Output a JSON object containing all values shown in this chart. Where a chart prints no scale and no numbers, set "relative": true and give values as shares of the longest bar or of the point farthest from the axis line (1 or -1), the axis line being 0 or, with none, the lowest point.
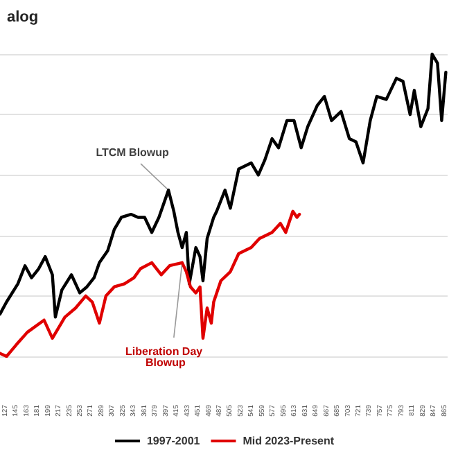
{
  "chart_data": {
    "type": "line",
    "title": "alog",
    "relative": true,
    "grid": "y",
    "legend": "bottom",
    "marker": "none",
    "line_style": "solid",
    "tick_labels": "x",
    "xlim": [
      118,
      870
    ],
    "xticks": [
      127,
      145,
      163,
      181,
      199,
      217,
      235,
      253,
      271,
      289,
      307,
      325,
      343,
      361,
      379,
      397,
      415,
      433,
      451,
      469,
      487,
      505,
      523,
      541,
      559,
      577,
      595,
      613,
      631,
      649,
      667,
      685,
      703,
      721,
      739,
      757,
      775,
      793,
      811,
      829,
      847,
      865
    ],
    "series": [
      {
        "name": "1997-2001",
        "color": "#000000",
        "x": [
          118,
          129,
          148,
          160,
          171,
          183,
          194,
          206,
          211,
          222,
          238,
          252,
          264,
          276,
          285,
          299,
          310,
          322,
          338,
          350,
          361,
          373,
          385,
          401,
          410,
          417,
          424,
          431,
          436,
          447,
          454,
          459,
          466,
          477,
          482,
          496,
          505,
          519,
          540,
          552,
          563,
          575,
          586,
          600,
          612,
          624,
          635,
          651,
          663,
          675,
          691,
          705,
          716,
          728,
          740,
          751,
          767,
          784,
          795,
          807,
          814,
          825,
          837,
          844,
          853,
          860,
          867
        ],
        "values": [
          0.14,
          0.18,
          0.24,
          0.3,
          0.26,
          0.29,
          0.33,
          0.27,
          0.13,
          0.22,
          0.27,
          0.21,
          0.23,
          0.26,
          0.31,
          0.35,
          0.42,
          0.46,
          0.47,
          0.46,
          0.46,
          0.41,
          0.46,
          0.55,
          0.48,
          0.41,
          0.36,
          0.41,
          0.24,
          0.36,
          0.33,
          0.25,
          0.39,
          0.46,
          0.48,
          0.55,
          0.49,
          0.62,
          0.64,
          0.6,
          0.65,
          0.72,
          0.69,
          0.78,
          0.78,
          0.69,
          0.76,
          0.83,
          0.86,
          0.78,
          0.81,
          0.72,
          0.71,
          0.64,
          0.78,
          0.86,
          0.85,
          0.92,
          0.91,
          0.8,
          0.88,
          0.76,
          0.82,
          1,
          0.97,
          0.78,
          0.94
        ]
      },
      {
        "name": "Mid 2023-Present",
        "color": "#e00000",
        "x": [
          118,
          129,
          146,
          164,
          192,
          206,
          227,
          245,
          262,
          273,
          285,
          296,
          310,
          327,
          343,
          354,
          373,
          389,
          403,
          424,
          431,
          438,
          447,
          454,
          459,
          466,
          473,
          477,
          489,
          505,
          519,
          540,
          554,
          575,
          589,
          598,
          610,
          617,
          621
        ],
        "values": [
          0.01,
          0,
          0.04,
          0.08,
          0.12,
          0.06,
          0.13,
          0.16,
          0.2,
          0.18,
          0.11,
          0.2,
          0.23,
          0.24,
          0.26,
          0.29,
          0.31,
          0.27,
          0.3,
          0.31,
          0.28,
          0.23,
          0.21,
          0.23,
          0.06,
          0.16,
          0.11,
          0.18,
          0.25,
          0.28,
          0.34,
          0.36,
          0.39,
          0.41,
          0.44,
          0.41,
          0.48,
          0.46,
          0.47
        ]
      }
    ],
    "annotations": [
      {
        "text": "LTCM Blowup",
        "x": 401,
        "y": 0.55
      },
      {
        "text": "Liberation Day Blowup",
        "x": 424,
        "y": 0.31
      }
    ]
  }
}
